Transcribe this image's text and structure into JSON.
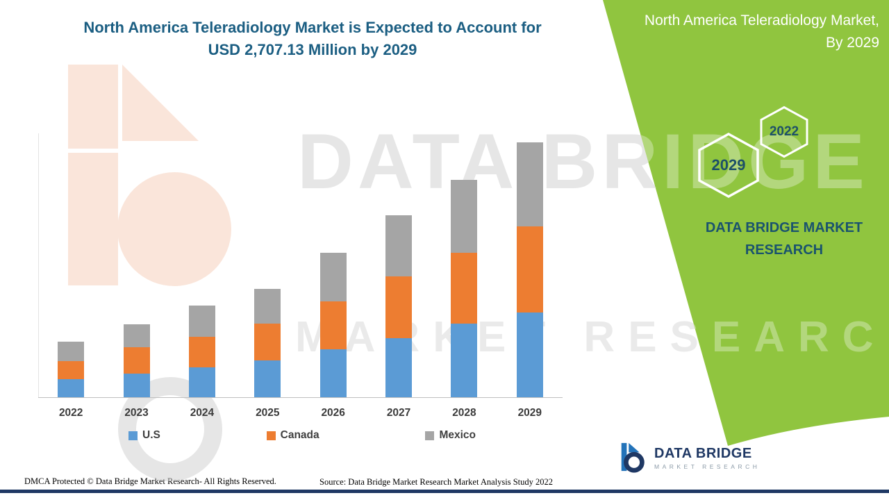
{
  "header": {
    "title_line1": "North America Teleradiology Market is Expected to Account for",
    "title_line2": "USD 2,707.13 Million by 2029"
  },
  "panel": {
    "title_line1": "North America Teleradiology Market,",
    "title_line2": "By 2029",
    "badge_year_left": "2029",
    "badge_year_right": "2022",
    "brand_line1": "DATA BRIDGE MARKET",
    "brand_line2": "RESEARCH"
  },
  "watermark": {
    "line1": "DATA BRIDGE",
    "line2": "MARKET RESEARCH"
  },
  "chart_data": {
    "type": "bar",
    "stacked": true,
    "title": "North America Teleradiology Market is Expected to Account for USD 2,707.13 Million by 2029",
    "unit": "USD Million",
    "categories": [
      "2022",
      "2023",
      "2024",
      "2025",
      "2026",
      "2027",
      "2028",
      "2029"
    ],
    "series": [
      {
        "name": "U.S",
        "color": "#5B9BD5",
        "values": [
          190,
          250,
          315,
          390,
          510,
          630,
          780,
          900
        ]
      },
      {
        "name": "Canada",
        "color": "#ED7D31",
        "values": [
          190,
          280,
          325,
          390,
          510,
          655,
          750,
          910
        ]
      },
      {
        "name": "Mexico",
        "color": "#A5A5A5",
        "values": [
          210,
          245,
          330,
          370,
          510,
          645,
          775,
          897.13
        ]
      }
    ],
    "total_2029": 2707.13,
    "ylim": [
      0,
      2800
    ],
    "grid": false,
    "legend_position": "bottom"
  },
  "colors": {
    "green_panel": "#90C53F",
    "navy": "#1F3864",
    "title_blue": "#1B5E82",
    "teal_text": "#1A536E"
  },
  "footer": {
    "dmca": "DMCA Protected © Data Bridge Market Research- All Rights Reserved.",
    "source": "Source: Data Bridge Market Research Market Analysis Study 2022"
  },
  "logo": {
    "name": "DATA BRIDGE",
    "subtitle": "MARKET RESEARCH"
  }
}
